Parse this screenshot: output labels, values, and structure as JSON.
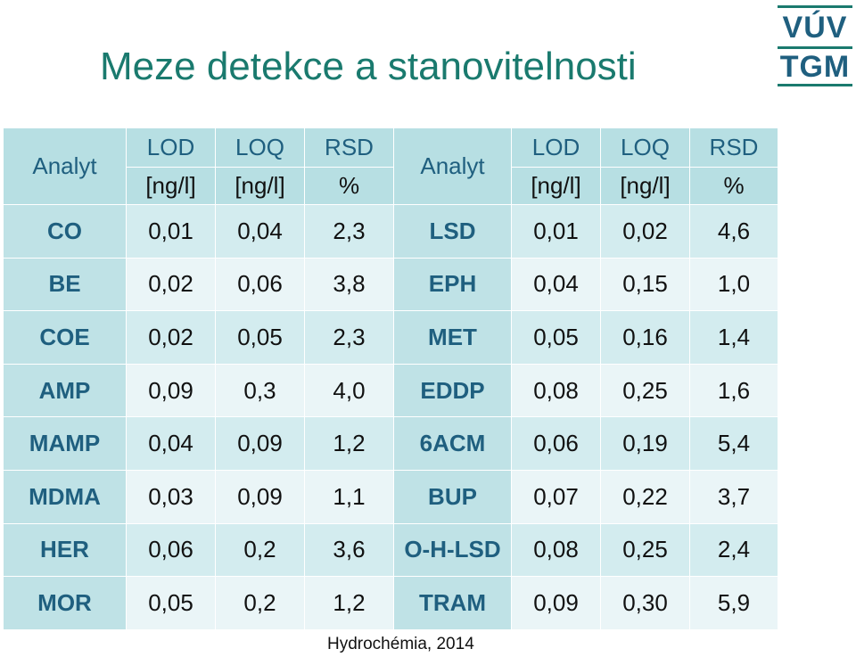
{
  "title": "Meze detekce a stanovitelnosti",
  "logo": {
    "top_text": "VÚV",
    "bottom_text": "TGM"
  },
  "table": {
    "headers": {
      "analyt": "Analyt",
      "lod": "LOD",
      "loq": "LOQ",
      "rsd": "RSD",
      "unit_lod": "[ng/l]",
      "unit_loq": "[ng/l]",
      "unit_rsd": "%"
    },
    "rows": [
      {
        "a1": "CO",
        "lod1": "0,01",
        "loq1": "0,04",
        "rsd1": "2,3",
        "a2": "LSD",
        "lod2": "0,01",
        "loq2": "0,02",
        "rsd2": "4,6"
      },
      {
        "a1": "BE",
        "lod1": "0,02",
        "loq1": "0,06",
        "rsd1": "3,8",
        "a2": "EPH",
        "lod2": "0,04",
        "loq2": "0,15",
        "rsd2": "1,0"
      },
      {
        "a1": "COE",
        "lod1": "0,02",
        "loq1": "0,05",
        "rsd1": "2,3",
        "a2": "MET",
        "lod2": "0,05",
        "loq2": "0,16",
        "rsd2": "1,4"
      },
      {
        "a1": "AMP",
        "lod1": "0,09",
        "loq1": "0,3",
        "rsd1": "4,0",
        "a2": "EDDP",
        "lod2": "0,08",
        "loq2": "0,25",
        "rsd2": "1,6"
      },
      {
        "a1": "MAMP",
        "lod1": "0,04",
        "loq1": "0,09",
        "rsd1": "1,2",
        "a2": "6ACM",
        "lod2": "0,06",
        "loq2": "0,19",
        "rsd2": "5,4"
      },
      {
        "a1": "MDMA",
        "lod1": "0,03",
        "loq1": "0,09",
        "rsd1": "1,1",
        "a2": "BUP",
        "lod2": "0,07",
        "loq2": "0,22",
        "rsd2": "3,7"
      },
      {
        "a1": "HER",
        "lod1": "0,06",
        "loq1": "0,2",
        "rsd1": "3,6",
        "a2": "O-H-LSD",
        "lod2": "0,08",
        "loq2": "0,25",
        "rsd2": "2,4"
      },
      {
        "a1": "MOR",
        "lod1": "0,05",
        "loq1": "0,2",
        "rsd1": "1,2",
        "a2": "TRAM",
        "lod2": "0,09",
        "loq2": "0,30",
        "rsd2": "5,9"
      }
    ]
  },
  "footer": "Hydrochémia, 2014",
  "colors": {
    "title": "#1a7a6e",
    "header_bg": "#b7dfe3",
    "analyt_bg": "#bfe2e6",
    "row_dark": "#d3ecef",
    "row_light": "#eaf5f7",
    "analyt_text": "#1f5f7f"
  }
}
